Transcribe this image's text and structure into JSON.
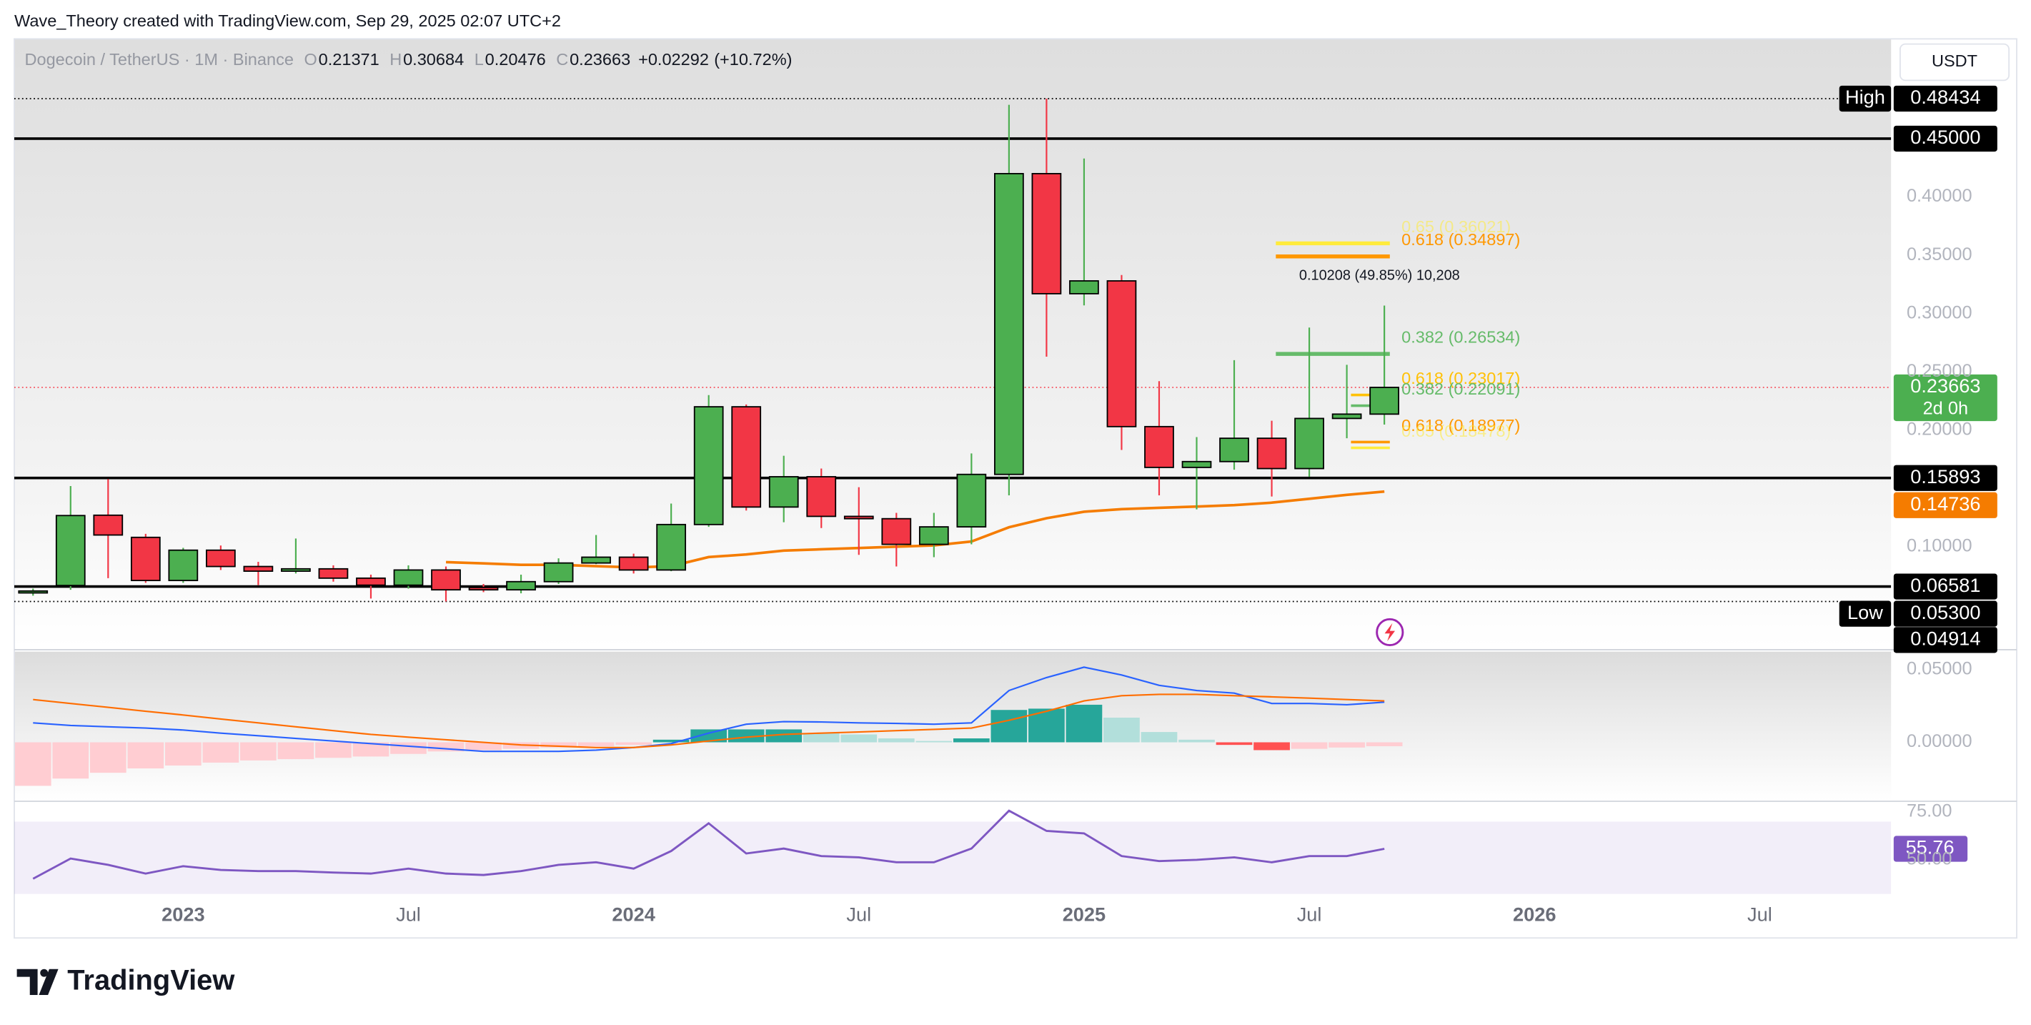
{
  "credit": "Wave_Theory created with TradingView.com, Sep 29, 2025 02:07 UTC+2",
  "brand": "TradingView",
  "currency": "USDT",
  "countdown": "2d 0h",
  "chart_data": [
    {
      "type": "candlestick",
      "title": "Dogecoin / TetherUS · 1M · Binance",
      "header_labels": [
        "O",
        "H",
        "L",
        "C"
      ],
      "change": "+0.02292",
      "change_pct": "(+10.72%)",
      "x": [
        "2022-09",
        "2022-10",
        "2022-11",
        "2022-12",
        "2023-01",
        "2023-02",
        "2023-03",
        "2023-04",
        "2023-05",
        "2023-06",
        "2023-07",
        "2023-08",
        "2023-09",
        "2023-10",
        "2023-11",
        "2023-12",
        "2024-01",
        "2024-02",
        "2024-03",
        "2024-04",
        "2024-05",
        "2024-06",
        "2024-07",
        "2024-08",
        "2024-09",
        "2024-10",
        "2024-11",
        "2024-12",
        "2025-01",
        "2025-02",
        "2025-03",
        "2025-04",
        "2025-05",
        "2025-06",
        "2025-07",
        "2025-08",
        "2025-09"
      ],
      "open": [
        0.061,
        0.0667,
        0.127,
        0.108,
        0.071,
        0.097,
        0.083,
        0.079,
        0.081,
        0.073,
        0.067,
        0.08,
        0.065,
        0.063,
        0.07,
        0.086,
        0.091,
        0.08,
        0.119,
        0.22,
        0.134,
        0.16,
        0.126,
        0.124,
        0.102,
        0.117,
        0.162,
        0.42,
        0.317,
        0.328,
        0.203,
        0.168,
        0.173,
        0.193,
        0.167,
        0.21,
        0.21371
      ],
      "high": [
        0.064,
        0.152,
        0.158,
        0.111,
        0.099,
        0.101,
        0.087,
        0.107,
        0.084,
        0.076,
        0.084,
        0.083,
        0.068,
        0.076,
        0.09,
        0.11,
        0.094,
        0.137,
        0.23,
        0.222,
        0.178,
        0.167,
        0.151,
        0.129,
        0.129,
        0.18,
        0.479,
        0.48434,
        0.433,
        0.333,
        0.242,
        0.194,
        0.26,
        0.208,
        0.288,
        0.256,
        0.30684
      ],
      "low": [
        0.058,
        0.063,
        0.073,
        0.069,
        0.069,
        0.08,
        0.067,
        0.077,
        0.07,
        0.0555,
        0.064,
        0.053,
        0.061,
        0.06,
        0.068,
        0.085,
        0.077,
        0.079,
        0.117,
        0.131,
        0.121,
        0.116,
        0.093,
        0.083,
        0.091,
        0.102,
        0.144,
        0.263,
        0.307,
        0.183,
        0.144,
        0.132,
        0.166,
        0.143,
        0.16,
        0.193,
        0.20476
      ],
      "close": [
        0.062,
        0.1267,
        0.11,
        0.071,
        0.097,
        0.083,
        0.079,
        0.081,
        0.073,
        0.067,
        0.08,
        0.063,
        0.063,
        0.07,
        0.086,
        0.091,
        0.08,
        0.119,
        0.22,
        0.134,
        0.16,
        0.126,
        0.124,
        0.102,
        0.117,
        0.162,
        0.42,
        0.317,
        0.328,
        0.203,
        0.168,
        0.173,
        0.193,
        0.167,
        0.21,
        0.21371,
        0.23663
      ],
      "up_color": "#4caf50",
      "down_color": "#f23645",
      "ema": {
        "color": "#f57c00",
        "values": [
          null,
          null,
          null,
          null,
          null,
          null,
          null,
          null,
          null,
          null,
          null,
          0.0867,
          0.0856,
          0.0844,
          0.0844,
          0.0833,
          0.0822,
          0.0833,
          0.0911,
          0.0933,
          0.0967,
          0.0978,
          0.0989,
          0.1,
          0.1011,
          0.1044,
          0.1167,
          0.1244,
          0.13,
          0.1322,
          0.1333,
          0.1344,
          0.1356,
          0.1378,
          0.1411,
          0.1444,
          0.14736
        ]
      },
      "xlim": [
        "2022-09",
        "2026-10"
      ],
      "xticks": [
        {
          "value": "2023-01",
          "label": "2023"
        },
        {
          "value": "2023-07",
          "label": "Jul"
        },
        {
          "value": "2024-01",
          "label": "2024"
        },
        {
          "value": "2024-07",
          "label": "Jul"
        },
        {
          "value": "2025-01",
          "label": "2025"
        },
        {
          "value": "2025-07",
          "label": "Jul"
        },
        {
          "value": "2026-01",
          "label": "2026"
        },
        {
          "value": "2026-07",
          "label": "Jul"
        }
      ],
      "ylim": [
        0.0133,
        0.5356
      ],
      "yticks": [
        {
          "value": 0.4,
          "label": "0.40000"
        },
        {
          "value": 0.35,
          "label": "0.35000"
        },
        {
          "value": 0.3,
          "label": "0.30000"
        },
        {
          "value": 0.25,
          "label": "0.25000"
        },
        {
          "value": 0.2,
          "label": "0.20000"
        },
        {
          "value": 0.1,
          "label": "0.10000"
        }
      ],
      "grid": false,
      "current_line_color": "#f7525f",
      "levels": [
        {
          "tag": "High",
          "value": 0.48434,
          "style": "dotted"
        },
        {
          "value": 0.45,
          "value_label": "0.45000",
          "style": "solid"
        },
        {
          "value": 0.15893,
          "style": "solid"
        },
        {
          "value": 0.06581,
          "style": "solid"
        },
        {
          "tag": "Low",
          "value": 0.053,
          "value_label": "0.05300",
          "style": "dotted"
        },
        {
          "value": 0.04914,
          "style": "none"
        }
      ],
      "annotations": [
        {
          "text": "0.65 (0.36021)",
          "value": 0.36021,
          "color": "#ffeb3b"
        },
        {
          "text": "0.618 (0.34897)",
          "value": 0.34897,
          "color": "#ff9800"
        },
        {
          "text": "0.382 (0.26534)",
          "value": 0.26534,
          "color": "#66bb6a"
        },
        {
          "text": "0.618 (0.23017)",
          "value": 0.23017,
          "color": "#ffc107"
        },
        {
          "text": "0.382 (0.22091)",
          "value": 0.22091,
          "color": "#66bb6a"
        },
        {
          "text": "0.618 (0.18977)",
          "value": 0.18977,
          "color": "#ff9800"
        },
        {
          "text": "0.65 (0.18478)",
          "value": 0.18478,
          "color": "#ffeb3b"
        }
      ],
      "measure": "0.10208 (49.85%) 10,208"
    },
    {
      "type": "macd",
      "histogram": [
        -0.03,
        -0.025,
        -0.021,
        -0.018,
        -0.016,
        -0.014,
        -0.0125,
        -0.0116,
        -0.0107,
        -0.0098,
        -0.008,
        -0.0063,
        -0.0054,
        -0.0045,
        -0.0036,
        -0.0027,
        -0.0018,
        0.0018,
        0.0089,
        0.0089,
        0.0089,
        0.0063,
        0.0054,
        0.0027,
        0.0009,
        0.0027,
        0.0223,
        0.0232,
        0.0259,
        0.017,
        0.0071,
        0.0018,
        -0.0018,
        -0.0054,
        -0.0045,
        -0.0036,
        -0.0027
      ],
      "macd": [
        0.0134,
        0.0116,
        0.0107,
        0.0098,
        0.0085,
        0.0063,
        0.0045,
        0.0027,
        0.0009,
        -0.0009,
        -0.0027,
        -0.0045,
        -0.0063,
        -0.0063,
        -0.0063,
        -0.0054,
        -0.0036,
        -0.0009,
        0.0063,
        0.0125,
        0.0143,
        0.014,
        0.0134,
        0.013,
        0.0125,
        0.0134,
        0.0357,
        0.0446,
        0.0518,
        0.0464,
        0.0393,
        0.0357,
        0.0339,
        0.0268,
        0.0268,
        0.0259,
        0.0277
      ],
      "signal": [
        0.0295,
        0.0268,
        0.0241,
        0.0214,
        0.0188,
        0.0161,
        0.0134,
        0.0107,
        0.008,
        0.0054,
        0.0036,
        0.0018,
        0,
        -0.0018,
        -0.0027,
        -0.0036,
        -0.0036,
        -0.0018,
        0.0009,
        0.0036,
        0.0054,
        0.0063,
        0.0071,
        0.008,
        0.0089,
        0.0098,
        0.0152,
        0.0214,
        0.0286,
        0.0321,
        0.033,
        0.033,
        0.0321,
        0.0313,
        0.0304,
        0.0295,
        0.0286
      ],
      "macd_color": "#2962ff",
      "signal_color": "#ff6d00",
      "hist_colors": {
        "pos_rise": "#26a69a",
        "pos_fall": "#b2dfdb",
        "neg_rise": "#ffcdd2",
        "neg_fall": "#ff5252"
      },
      "ylim": [
        -0.0402,
        0.0625
      ],
      "yticks": [
        {
          "value": 0.05,
          "label": "0.05000"
        },
        {
          "value": 0,
          "label": "0.00000"
        }
      ]
    },
    {
      "type": "line",
      "values": [
        40.1,
        50.7,
        47.4,
        42.8,
        46.7,
        44.7,
        44.1,
        44.1,
        43.4,
        42.8,
        45.4,
        42.8,
        42.1,
        44.1,
        47.4,
        48.7,
        45.4,
        54.6,
        69.1,
        53.3,
        55.9,
        52.0,
        51.3,
        48.7,
        48.7,
        55.9,
        75.7,
        65.1,
        63.8,
        52.0,
        49.3,
        50.0,
        51.3,
        48.7,
        52.0,
        52.0,
        55.76
      ],
      "color": "#7e57c2",
      "band": [
        30,
        70
      ],
      "ylim": [
        32.2,
        79.6
      ],
      "yticks": [
        {
          "value": 75,
          "label": "75.00"
        },
        {
          "value": 50,
          "label": "50.00"
        }
      ]
    }
  ]
}
